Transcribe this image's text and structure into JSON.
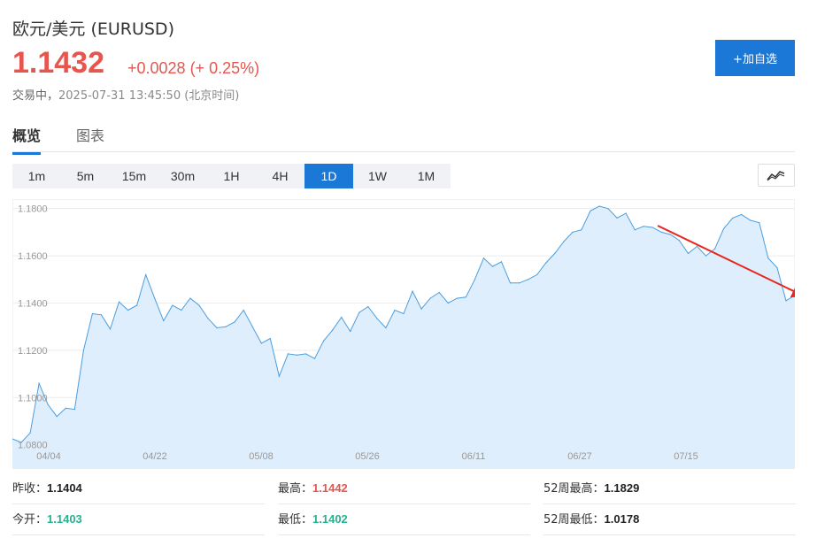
{
  "header": {
    "title": "欧元/美元  (EURUSD)",
    "price": "1.1432",
    "change": "+0.0028 (+ 0.25%)",
    "status": "交易中，",
    "timestamp": "2025-07-31 13:45:50 (北京时间)",
    "add_button": "+加自选"
  },
  "tabs": [
    "概览",
    "图表"
  ],
  "periods": [
    "1m",
    "5m",
    "15m",
    "30m",
    "1H",
    "4H",
    "1D",
    "1W",
    "1M"
  ],
  "active_period": "1D",
  "colors": {
    "up": "#e8554e",
    "down": "#2bb08e",
    "accent": "#1b78d6",
    "line": "#4a9ee0",
    "fill": "#deeefc",
    "arrow": "#e8251f"
  },
  "icons": {
    "chart_type": "line-chart-icon"
  },
  "chart_data": {
    "type": "area",
    "ylim": [
      1.078,
      1.184
    ],
    "yticks": [
      1.08,
      1.1,
      1.12,
      1.14,
      1.16,
      1.18
    ],
    "ytick_labels": [
      "1.0800",
      "1.1000",
      "1.1200",
      "1.1400",
      "1.1600",
      "1.1800"
    ],
    "xtick_labels": [
      "04/04",
      "04/22",
      "05/08",
      "05/26",
      "06/11",
      "06/27",
      "07/15"
    ],
    "grid": true,
    "annotation": "red-arrow-pointing-down-right",
    "values": [
      1.0825,
      1.081,
      1.085,
      1.106,
      1.097,
      1.092,
      1.0955,
      1.095,
      1.12,
      1.1355,
      1.135,
      1.129,
      1.1405,
      1.137,
      1.139,
      1.152,
      1.142,
      1.1325,
      1.139,
      1.137,
      1.142,
      1.139,
      1.1335,
      1.1295,
      1.13,
      1.132,
      1.137,
      1.13,
      1.123,
      1.125,
      1.109,
      1.1185,
      1.118,
      1.1185,
      1.1165,
      1.124,
      1.1285,
      1.134,
      1.128,
      1.136,
      1.1385,
      1.1335,
      1.1295,
      1.137,
      1.1355,
      1.145,
      1.1375,
      1.142,
      1.1445,
      1.14,
      1.142,
      1.1425,
      1.15,
      1.159,
      1.1555,
      1.1575,
      1.1485,
      1.1485,
      1.15,
      1.152,
      1.157,
      1.161,
      1.166,
      1.17,
      1.171,
      1.179,
      1.181,
      1.18,
      1.176,
      1.178,
      1.171,
      1.1725,
      1.172,
      1.17,
      1.169,
      1.1665,
      1.161,
      1.164,
      1.16,
      1.163,
      1.1715,
      1.176,
      1.1775,
      1.175,
      1.174,
      1.159,
      1.155,
      1.141,
      1.1432
    ]
  },
  "stats": {
    "prev_close": {
      "label": "昨收：",
      "value": "1.1404"
    },
    "high": {
      "label": "最高：",
      "value": "1.1442"
    },
    "high_52w": {
      "label": "52周最高：",
      "value": "1.1829"
    },
    "open": {
      "label": "今开：",
      "value": "1.1403"
    },
    "low": {
      "label": "最低：",
      "value": "1.1402"
    },
    "low_52w": {
      "label": "52周最低：",
      "value": "1.0178"
    }
  }
}
